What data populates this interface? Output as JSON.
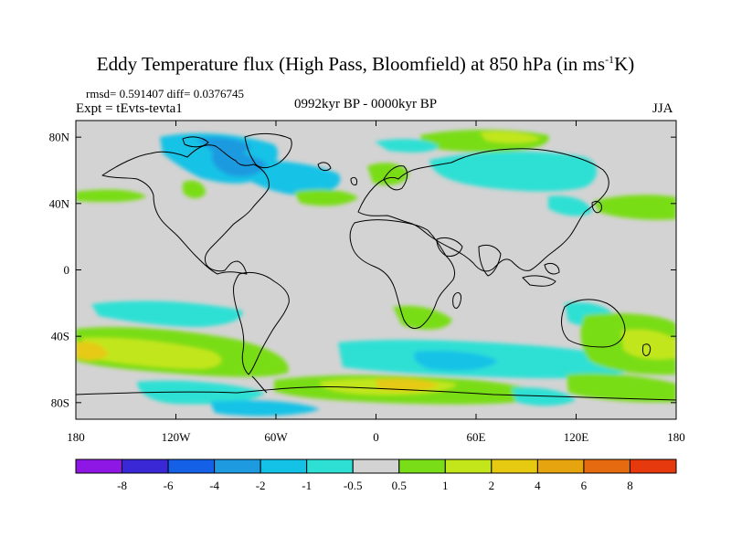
{
  "title": {
    "main": "Eddy Temperature flux (High Pass, Bloomfield) at 850 hPa (in ms",
    "sup": "-1",
    "end": "K)"
  },
  "stats": "rmsd= 0.591407 diff= 0.0376745",
  "expt": "Expt = tEvts-tevta1",
  "period": "0992kyr BP - 0000kyr BP",
  "season": "JJA",
  "axes": {
    "lon_ticks": [
      {
        "value": -180,
        "label": "180"
      },
      {
        "value": -120,
        "label": "120W"
      },
      {
        "value": -60,
        "label": "60W"
      },
      {
        "value": 0,
        "label": "0"
      },
      {
        "value": 60,
        "label": "60E"
      },
      {
        "value": 120,
        "label": "120E"
      },
      {
        "value": 180,
        "label": "180"
      }
    ],
    "lat_ticks": [
      {
        "value": 80,
        "label": "80N"
      },
      {
        "value": 40,
        "label": "40N"
      },
      {
        "value": 0,
        "label": "0"
      },
      {
        "value": -40,
        "label": "40S"
      },
      {
        "value": -80,
        "label": "80S"
      }
    ],
    "lon_range": [
      -180,
      180
    ],
    "lat_range": [
      -90,
      90
    ]
  },
  "colorbar": {
    "colors": [
      "#8f17e6",
      "#3a27d6",
      "#1460e6",
      "#1d9ae0",
      "#13c2e6",
      "#2ee0d4",
      "#d3d3d3",
      "#79dd18",
      "#c2e61a",
      "#e6ca12",
      "#e6a50e",
      "#e66a10",
      "#e6390e"
    ],
    "labels": [
      "-8",
      "-6",
      "-4",
      "-2",
      "-1",
      "-0.5",
      "0.5",
      "1",
      "2",
      "4",
      "6",
      "8"
    ]
  },
  "field_colors": {
    "background": "#d3d3d3",
    "n_cyan": "#2ee0d4",
    "n_lightblue": "#13c2e6",
    "n_blue": "#1d9ae0",
    "p_green": "#79dd18",
    "p_yellowgreen": "#c2e61a",
    "p_yellow": "#e6ca12",
    "p_orange": "#e6a50e"
  }
}
